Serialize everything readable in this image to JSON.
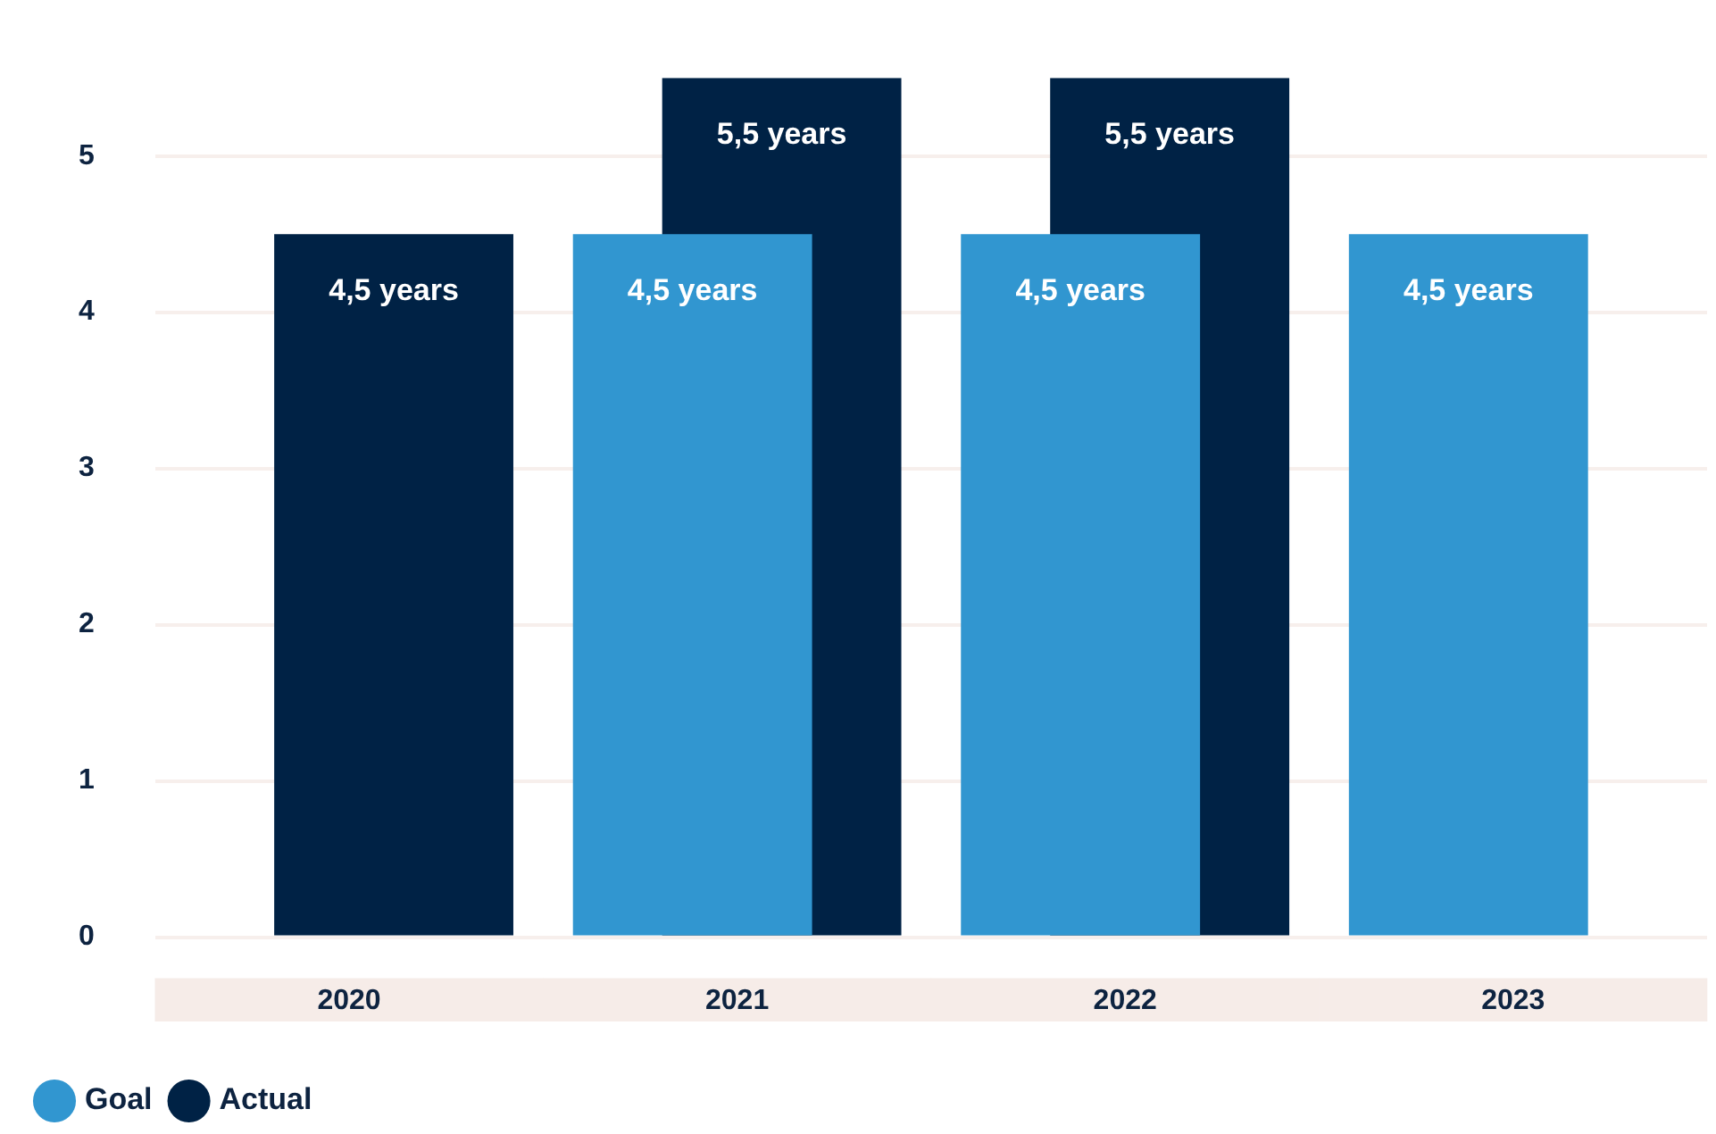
{
  "chart_data": {
    "type": "bar",
    "categories": [
      "2020",
      "2021",
      "2022",
      "2023"
    ],
    "series": [
      {
        "name": "Goal",
        "color": "#3196d0",
        "values": [
          null,
          4.5,
          4.5,
          4.5
        ],
        "value_labels": [
          null,
          "4,5 years",
          "4,5 years",
          "4,5 years"
        ]
      },
      {
        "name": "Actual",
        "color": "#002245",
        "values": [
          4.5,
          5.5,
          5.5,
          null
        ],
        "value_labels": [
          "4,5 years",
          "5,5 years",
          "5,5 years",
          null
        ]
      }
    ],
    "ylim": [
      0,
      5.5
    ],
    "yticks": [
      0,
      1,
      2,
      3,
      4,
      5
    ],
    "grid": "y",
    "legend": "bottom left"
  }
}
